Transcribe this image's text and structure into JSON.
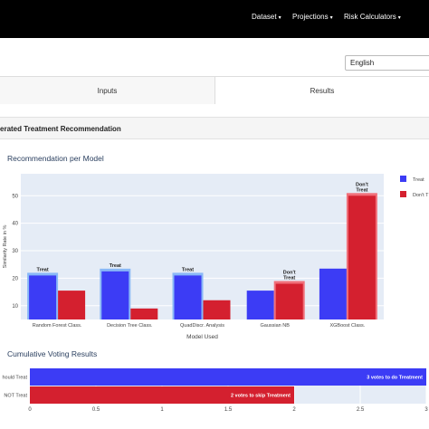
{
  "navbar": {
    "items": [
      "Dataset",
      "Projections",
      "Risk Calculators"
    ]
  },
  "language": {
    "selected": "English"
  },
  "tabs": [
    "Inputs",
    "Results"
  ],
  "section": {
    "title": "erated Treatment Recommendation"
  },
  "chart_data": [
    {
      "type": "bar",
      "title": "Recommendation per Model",
      "xlabel": "Model Used",
      "ylabel": "Similarity Rate in %",
      "ylim": [
        5,
        58
      ],
      "yticks": [
        10,
        20,
        30,
        40,
        50
      ],
      "categories": [
        "Random Forest Class.",
        "Decision Tree Class.",
        "QuadDiscr. Analysis",
        "Gaussian NB",
        "XGBoost Class."
      ],
      "series": [
        {
          "name": "Treat",
          "color": "#3c3cf5",
          "values": [
            21,
            22.5,
            21,
            15.5,
            23.5
          ]
        },
        {
          "name": "Don't T",
          "color": "#d4202f",
          "values": [
            15.5,
            9,
            12,
            18,
            50
          ]
        }
      ],
      "highlight": [
        {
          "series": 0,
          "label": "Treat"
        },
        {
          "series": 0,
          "label": "Treat"
        },
        {
          "series": 0,
          "label": "Treat"
        },
        {
          "series": 1,
          "label": "Don't Treat"
        },
        {
          "series": 1,
          "label": "Don't Treat"
        }
      ],
      "legend_position": "right"
    },
    {
      "type": "bar",
      "orientation": "horizontal",
      "title": "Cumulative Voting Results",
      "categories": [
        "hould Treat",
        "NOT Treat"
      ],
      "values": [
        3,
        2
      ],
      "colors": [
        "#3c3cf5",
        "#d4202f"
      ],
      "labels": [
        "3 votes to do Treatment",
        "2 votes to skip Treatment"
      ],
      "xlim": [
        0,
        3
      ],
      "xticks": [
        "0",
        "0.5",
        "1",
        "1.5",
        "2",
        "2.5",
        "3"
      ]
    }
  ]
}
